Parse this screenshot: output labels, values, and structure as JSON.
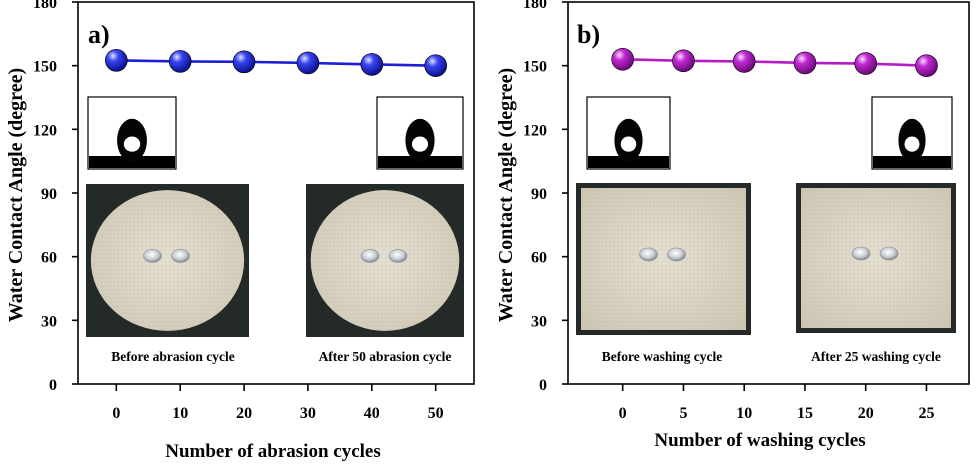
{
  "chart_data": [
    {
      "type": "scatter",
      "panel_label": "a)",
      "xlabel": "Number of abrasion cycles",
      "ylabel": "Water Contact Angle (degree)",
      "x": [
        0,
        10,
        20,
        30,
        40,
        50
      ],
      "y": [
        152.5,
        152.0,
        151.8,
        151.3,
        150.6,
        150.0
      ],
      "xticks": [
        0,
        10,
        20,
        30,
        40,
        50
      ],
      "yticks": [
        0,
        30,
        60,
        90,
        120,
        150,
        180
      ],
      "xlim": [
        -6,
        56
      ],
      "ylim": [
        0,
        180
      ],
      "marker_color": "#1a1fd6",
      "line_color": "#1a1fd6",
      "grid": false,
      "insets": [
        {
          "kind": "droplet",
          "caption": ""
        },
        {
          "kind": "droplet",
          "caption": ""
        },
        {
          "kind": "fabric-round",
          "caption": "Before abrasion cycle"
        },
        {
          "kind": "fabric-round",
          "caption": "After 50 abrasion cycle"
        }
      ]
    },
    {
      "type": "scatter",
      "panel_label": "b)",
      "xlabel": "Number of washing cycles",
      "ylabel": "Water Contact Angle (degree)",
      "x": [
        0,
        5,
        10,
        15,
        20,
        25
      ],
      "y": [
        153.0,
        152.3,
        152.0,
        151.3,
        151.0,
        150.0
      ],
      "xticks": [
        0,
        5,
        10,
        15,
        20,
        25
      ],
      "yticks": [
        0,
        30,
        60,
        90,
        120,
        150,
        180
      ],
      "xlim": [
        -4.5,
        28.5
      ],
      "ylim": [
        0,
        180
      ],
      "marker_color": "#b41bc4",
      "line_color": "#b41bc4",
      "grid": false,
      "insets": [
        {
          "kind": "droplet",
          "caption": ""
        },
        {
          "kind": "droplet",
          "caption": ""
        },
        {
          "kind": "fabric-square",
          "caption": "Before washing cycle"
        },
        {
          "kind": "fabric-square",
          "caption": "After 25 washing cycle"
        }
      ]
    }
  ]
}
